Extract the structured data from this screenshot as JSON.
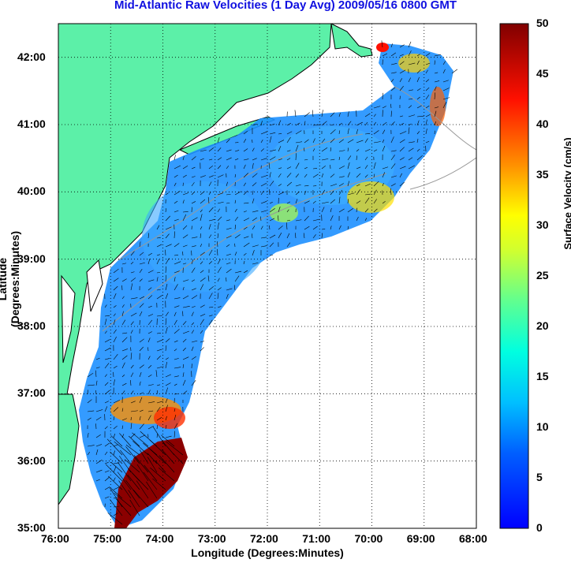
{
  "title": "Mid-Atlantic Raw Velocities (1 Day Avg) 2009/05/16 0800 GMT",
  "map": {
    "x_axis_label": "Longitude (Degrees:Minutes)",
    "y_axis_label": "Latitude (Degrees:Minutes)",
    "lon_ticks": [
      "76:00",
      "75:00",
      "74:00",
      "73:00",
      "72:00",
      "71:00",
      "70:00",
      "69:00",
      "68:00"
    ],
    "lat_ticks": [
      "42:00",
      "41:00",
      "40:00",
      "39:00",
      "38:00",
      "37:00",
      "36:00",
      "35:00"
    ],
    "lon_range": [
      -76,
      -68
    ],
    "lat_range": [
      35,
      42.5
    ],
    "land_color": "#5cf0a8",
    "grid": "dotted"
  },
  "colorbar": {
    "label": "Surface Velocity (cm/s)",
    "ticks": [
      "50",
      "45",
      "40",
      "35",
      "30",
      "25",
      "20",
      "15",
      "10",
      "5",
      "0"
    ],
    "range": [
      0,
      50
    ],
    "colormap": "jet"
  }
}
